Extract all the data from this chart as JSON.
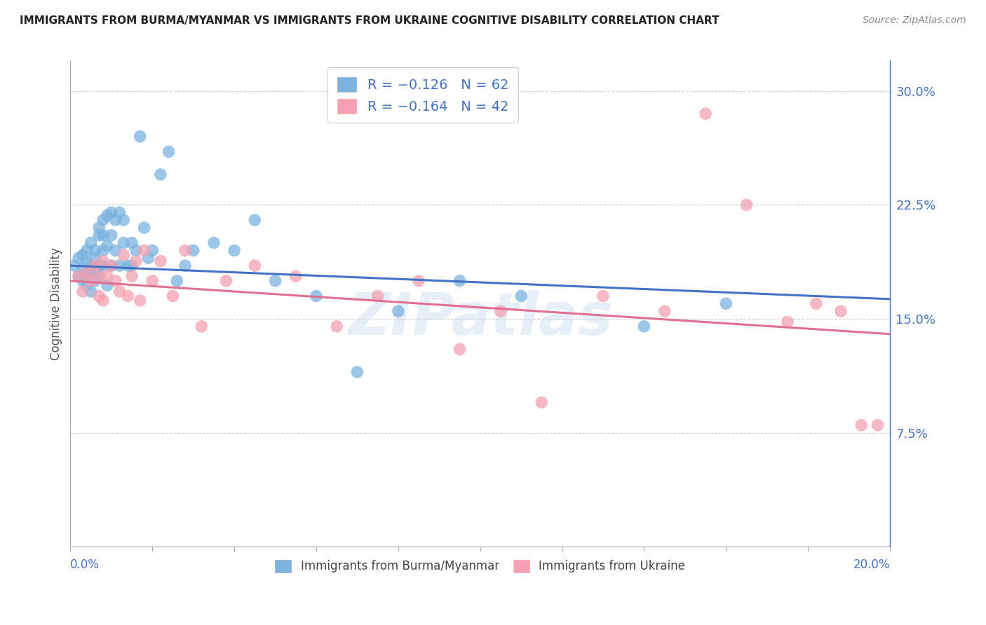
{
  "title": "IMMIGRANTS FROM BURMA/MYANMAR VS IMMIGRANTS FROM UKRAINE COGNITIVE DISABILITY CORRELATION CHART",
  "source": "Source: ZipAtlas.com",
  "ylabel": "Cognitive Disability",
  "ytick_labels": [
    "7.5%",
    "15.0%",
    "22.5%",
    "30.0%"
  ],
  "ytick_values": [
    0.075,
    0.15,
    0.225,
    0.3
  ],
  "xlim": [
    0.0,
    0.2
  ],
  "ylim": [
    0.0,
    0.32
  ],
  "color_burma": "#7ab3e0",
  "color_ukraine": "#f4a0b0",
  "color_line_burma": "#4472C4",
  "color_line_ukraine": "#E07090",
  "color_axis_blue": "#4472C4",
  "background_color": "#ffffff",
  "grid_color": "#cccccc",
  "watermark": "ZIPatlas",
  "burma_line_start": 0.185,
  "burma_line_end": 0.163,
  "ukraine_line_start": 0.175,
  "ukraine_line_end": 0.14,
  "burma_x": [
    0.001,
    0.002,
    0.002,
    0.003,
    0.003,
    0.003,
    0.004,
    0.004,
    0.004,
    0.004,
    0.005,
    0.005,
    0.005,
    0.005,
    0.006,
    0.006,
    0.006,
    0.006,
    0.007,
    0.007,
    0.007,
    0.007,
    0.008,
    0.008,
    0.008,
    0.008,
    0.009,
    0.009,
    0.009,
    0.01,
    0.01,
    0.01,
    0.011,
    0.011,
    0.012,
    0.012,
    0.013,
    0.013,
    0.014,
    0.015,
    0.015,
    0.016,
    0.017,
    0.018,
    0.019,
    0.02,
    0.022,
    0.024,
    0.026,
    0.028,
    0.03,
    0.035,
    0.04,
    0.045,
    0.05,
    0.06,
    0.07,
    0.08,
    0.095,
    0.11,
    0.14,
    0.16
  ],
  "burma_y": [
    0.185,
    0.178,
    0.19,
    0.175,
    0.183,
    0.192,
    0.18,
    0.188,
    0.195,
    0.172,
    0.185,
    0.178,
    0.2,
    0.168,
    0.19,
    0.183,
    0.195,
    0.175,
    0.21,
    0.185,
    0.205,
    0.178,
    0.215,
    0.195,
    0.205,
    0.185,
    0.218,
    0.198,
    0.172,
    0.22,
    0.205,
    0.185,
    0.215,
    0.195,
    0.22,
    0.185,
    0.215,
    0.2,
    0.185,
    0.2,
    0.185,
    0.195,
    0.27,
    0.21,
    0.19,
    0.195,
    0.245,
    0.26,
    0.175,
    0.185,
    0.195,
    0.2,
    0.195,
    0.215,
    0.175,
    0.165,
    0.115,
    0.155,
    0.175,
    0.165,
    0.145,
    0.16
  ],
  "ukraine_x": [
    0.002,
    0.003,
    0.004,
    0.005,
    0.006,
    0.007,
    0.007,
    0.008,
    0.008,
    0.009,
    0.01,
    0.011,
    0.012,
    0.013,
    0.014,
    0.015,
    0.016,
    0.017,
    0.018,
    0.02,
    0.022,
    0.025,
    0.028,
    0.032,
    0.038,
    0.045,
    0.055,
    0.065,
    0.075,
    0.085,
    0.095,
    0.105,
    0.115,
    0.13,
    0.145,
    0.155,
    0.165,
    0.175,
    0.182,
    0.188,
    0.193,
    0.197
  ],
  "ukraine_y": [
    0.178,
    0.168,
    0.18,
    0.175,
    0.185,
    0.165,
    0.178,
    0.188,
    0.162,
    0.178,
    0.185,
    0.175,
    0.168,
    0.192,
    0.165,
    0.178,
    0.188,
    0.162,
    0.195,
    0.175,
    0.188,
    0.165,
    0.195,
    0.145,
    0.175,
    0.185,
    0.178,
    0.145,
    0.165,
    0.175,
    0.13,
    0.155,
    0.095,
    0.165,
    0.155,
    0.285,
    0.225,
    0.148,
    0.16,
    0.155,
    0.08,
    0.08
  ]
}
